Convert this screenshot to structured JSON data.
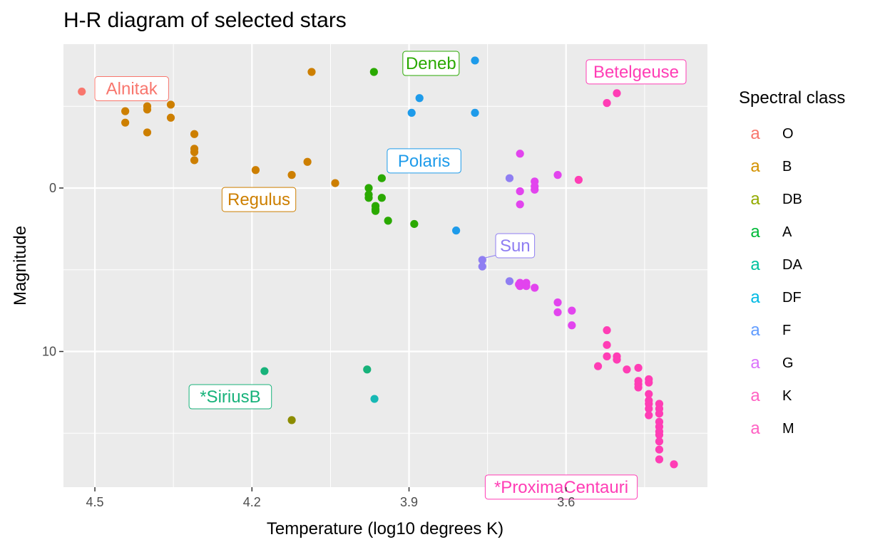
{
  "chart_data": {
    "type": "scatter",
    "title": "H-R diagram of selected stars",
    "xlabel": "Temperature (log10 degrees K)",
    "ylabel": "Magnitude",
    "x_reversed": true,
    "y_reversed": true,
    "xlim": [
      4.56,
      3.33
    ],
    "ylim": [
      -8.8,
      18.3
    ],
    "x_ticks": [
      4.5,
      4.2,
      3.9,
      3.6
    ],
    "x_tick_labels": [
      "4.5",
      "4.2",
      "3.9",
      "3.6"
    ],
    "y_ticks": [
      0,
      10
    ],
    "y_tick_labels": [
      "0",
      "10"
    ],
    "grid": true,
    "legend": {
      "title": "Spectral class",
      "position": "right",
      "key_glyph": "a",
      "entries": [
        {
          "name": "O",
          "color": "#F8766D"
        },
        {
          "name": "B",
          "color": "#D39200"
        },
        {
          "name": "DB",
          "color": "#93AA00"
        },
        {
          "name": "A",
          "color": "#00BA38"
        },
        {
          "name": "DA",
          "color": "#00C19F"
        },
        {
          "name": "DF",
          "color": "#00B9E3"
        },
        {
          "name": "F",
          "color": "#619CFF"
        },
        {
          "name": "G",
          "color": "#DB72FB"
        },
        {
          "name": "K",
          "color": "#FF61C3"
        },
        {
          "name": "M",
          "color": "#FF61C3"
        }
      ]
    },
    "series": [
      {
        "name": "O",
        "color": "#F8766D",
        "points": [
          [
            4.525,
            -5.9
          ]
        ]
      },
      {
        "name": "B",
        "color": "#CD7F00",
        "points": [
          [
            4.442,
            -4.7
          ],
          [
            4.442,
            -4.0
          ],
          [
            4.4,
            -5.0
          ],
          [
            4.4,
            -4.8
          ],
          [
            4.4,
            -3.4
          ],
          [
            4.355,
            -5.1
          ],
          [
            4.355,
            -4.3
          ],
          [
            4.31,
            -3.3
          ],
          [
            4.31,
            -2.4
          ],
          [
            4.31,
            -2.2
          ],
          [
            4.31,
            -1.7
          ],
          [
            4.193,
            -1.1
          ],
          [
            4.124,
            -0.8
          ],
          [
            4.094,
            -1.6
          ],
          [
            4.041,
            -0.3
          ],
          [
            4.086,
            -7.1
          ]
        ]
      },
      {
        "name": "DB",
        "color": "#8C8C00",
        "points": [
          [
            4.124,
            14.2
          ]
        ]
      },
      {
        "name": "A",
        "color": "#2AA900",
        "points": [
          [
            3.967,
            -7.1
          ],
          [
            3.977,
            0.0
          ],
          [
            3.977,
            0.4
          ],
          [
            3.977,
            0.6
          ],
          [
            3.964,
            1.1
          ],
          [
            3.964,
            1.3
          ],
          [
            3.964,
            1.4
          ],
          [
            3.952,
            -0.6
          ],
          [
            3.952,
            0.6
          ],
          [
            3.94,
            2.0
          ],
          [
            3.89,
            2.2
          ]
        ]
      },
      {
        "name": "DA",
        "color": "#17B27A",
        "points": [
          [
            4.176,
            11.2
          ],
          [
            3.98,
            11.1
          ]
        ]
      },
      {
        "name": "DF",
        "color": "#17B8B4",
        "points": [
          [
            3.966,
            12.9
          ]
        ]
      },
      {
        "name": "F",
        "color": "#1E9BEA",
        "points": [
          [
            3.774,
            -7.8
          ],
          [
            3.88,
            -5.5
          ],
          [
            3.895,
            -4.6
          ],
          [
            3.774,
            -4.6
          ],
          [
            3.81,
            2.6
          ]
        ]
      },
      {
        "name": "G",
        "color": "#8F7EF2",
        "points": [
          [
            3.76,
            4.4
          ],
          [
            3.76,
            4.8
          ],
          [
            3.708,
            -0.6
          ],
          [
            3.708,
            5.7
          ]
        ]
      },
      {
        "name": "K",
        "color": "#E244EE",
        "points": [
          [
            3.688,
            -2.1
          ],
          [
            3.688,
            0.2
          ],
          [
            3.688,
            1.0
          ],
          [
            3.66,
            -0.4
          ],
          [
            3.66,
            -0.1
          ],
          [
            3.66,
            0.1
          ],
          [
            3.616,
            -0.8
          ],
          [
            3.688,
            5.8
          ],
          [
            3.688,
            6.0
          ],
          [
            3.69,
            5.9
          ],
          [
            3.676,
            5.8
          ],
          [
            3.676,
            6.0
          ],
          [
            3.66,
            6.1
          ],
          [
            3.616,
            7.0
          ],
          [
            3.616,
            7.6
          ],
          [
            3.589,
            7.5
          ],
          [
            3.589,
            8.4
          ]
        ]
      },
      {
        "name": "M",
        "color": "#FF3DB5",
        "points": [
          [
            3.576,
            -0.5
          ],
          [
            3.503,
            -5.8
          ],
          [
            3.522,
            -5.2
          ],
          [
            3.522,
            8.7
          ],
          [
            3.522,
            9.6
          ],
          [
            3.522,
            10.3
          ],
          [
            3.503,
            10.3
          ],
          [
            3.503,
            10.5
          ],
          [
            3.539,
            10.9
          ],
          [
            3.484,
            11.1
          ],
          [
            3.462,
            11.0
          ],
          [
            3.462,
            11.8
          ],
          [
            3.462,
            12.0
          ],
          [
            3.462,
            12.2
          ],
          [
            3.442,
            11.7
          ],
          [
            3.442,
            11.9
          ],
          [
            3.442,
            12.6
          ],
          [
            3.442,
            13.0
          ],
          [
            3.442,
            13.2
          ],
          [
            3.442,
            13.5
          ],
          [
            3.442,
            13.9
          ],
          [
            3.422,
            13.2
          ],
          [
            3.422,
            13.5
          ],
          [
            3.422,
            13.8
          ],
          [
            3.422,
            14.3
          ],
          [
            3.422,
            14.6
          ],
          [
            3.422,
            14.9
          ],
          [
            3.422,
            15.1
          ],
          [
            3.422,
            15.5
          ],
          [
            3.422,
            16.0
          ],
          [
            3.422,
            16.6
          ],
          [
            3.394,
            16.9
          ]
        ]
      }
    ],
    "annotations": [
      {
        "text": "Alnitak",
        "color": "#F8766D",
        "x": 4.525,
        "y": -5.9
      },
      {
        "text": "Deneb",
        "color": "#2AA900",
        "x": 3.967,
        "y": -7.1
      },
      {
        "text": "Polaris",
        "color": "#1E9BEA",
        "x": 3.81,
        "y": -3.1
      },
      {
        "text": "Betelgeuse",
        "color": "#FF3DB5",
        "x": 3.503,
        "y": -5.8
      },
      {
        "text": "Regulus",
        "color": "#CD7F00",
        "x": 4.041,
        "y": -0.3
      },
      {
        "text": "Sun",
        "color": "#8F7EF2",
        "x": 3.76,
        "y": 4.4
      },
      {
        "text": "*SiriusB",
        "color": "#17B27A",
        "x": 4.176,
        "y": 11.2
      },
      {
        "text": "*ProximaCentauri",
        "color": "#FF3DB5",
        "x": 3.394,
        "y": 16.9
      }
    ]
  }
}
